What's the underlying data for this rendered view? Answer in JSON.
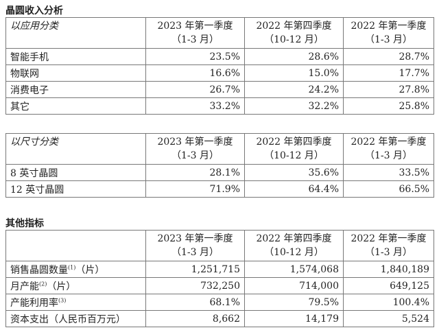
{
  "section1": {
    "title": "晶圆收入分析",
    "table_app": {
      "label": "以应用分类",
      "headers": [
        [
          "2023 年第一季度",
          "（1-3 月）"
        ],
        [
          "2022 年第四季度",
          "（10-12 月）"
        ],
        [
          "2022 年第一季度",
          "（1-3 月）"
        ]
      ],
      "rows": [
        {
          "name": "智能手机",
          "values": [
            "23.5%",
            "28.6%",
            "28.7%"
          ]
        },
        {
          "name": "物联网",
          "values": [
            "16.6%",
            "15.0%",
            "17.7%"
          ]
        },
        {
          "name": "消费电子",
          "values": [
            "26.7%",
            "24.2%",
            "27.8%"
          ]
        },
        {
          "name": "其它",
          "values": [
            "33.2%",
            "32.2%",
            "25.8%"
          ]
        }
      ]
    },
    "table_size": {
      "label": "以尺寸分类",
      "headers": [
        [
          "2023 年第一季度",
          "（1-3 月）"
        ],
        [
          "2022 年第四季度",
          "（10-12 月）"
        ],
        [
          "2022 年第一季度",
          "（1-3 月）"
        ]
      ],
      "rows": [
        {
          "name": "8 英寸晶圆",
          "values": [
            "28.1%",
            "35.6%",
            "33.5%"
          ]
        },
        {
          "name": "12 英寸晶圆",
          "values": [
            "71.9%",
            "64.4%",
            "66.5%"
          ]
        }
      ]
    }
  },
  "section2": {
    "title": "其他指标",
    "headers": [
      [
        "2023 年第一季度",
        "（1-3 月）"
      ],
      [
        "2022 年第四季度",
        "（10-12 月）"
      ],
      [
        "2022 年第一季度",
        "（1-3 月）"
      ]
    ],
    "rows": [
      {
        "name": "销售晶圆数量",
        "sup": "(1)",
        "unit": "（片）",
        "values": [
          "1,251,715",
          "1,574,068",
          "1,840,189"
        ]
      },
      {
        "name": "月产能",
        "sup": "(2)",
        "unit": "（片）",
        "values": [
          "732,250",
          "714,000",
          "649,125"
        ]
      },
      {
        "name": "产能利用率",
        "sup": "(3)",
        "unit": "",
        "values": [
          "68.1%",
          "79.5%",
          "100.4%"
        ]
      },
      {
        "name": "资本支出（人民币百万元）",
        "sup": "",
        "unit": "",
        "values": [
          "8,662",
          "14,179",
          "5,524"
        ]
      }
    ]
  }
}
